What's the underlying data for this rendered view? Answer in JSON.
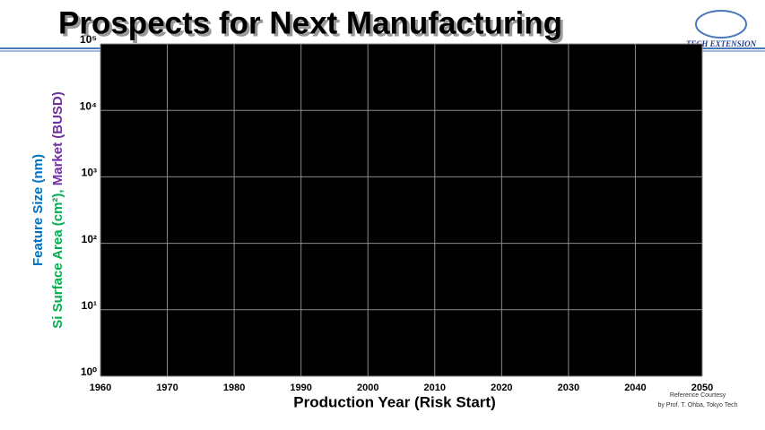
{
  "header": {
    "title": "Prospects for Next Manufacturing",
    "logo": "TECH EXTENSION"
  },
  "chart_data": {
    "type": "line",
    "xlabel": "Production Year (Risk Start)",
    "ylabel": [
      {
        "text": "Feature Size (nm)",
        "color": "#0070c0"
      },
      {
        "text": "Si Surface Area (cm²), ",
        "color": "#00b050"
      },
      {
        "text": "Market (BUSD)",
        "color": "#7030a0"
      }
    ],
    "xlim": [
      1960,
      2050
    ],
    "xticks": [
      1960,
      1970,
      1980,
      1990,
      2000,
      2010,
      2020,
      2030,
      2040,
      2050
    ],
    "ylim": [
      1,
      100000
    ],
    "log_y": true,
    "yticks": [
      {
        "value": 1,
        "label": "10⁰"
      },
      {
        "value": 10,
        "label": "10¹"
      },
      {
        "value": 100,
        "label": "10²"
      },
      {
        "value": 1000,
        "label": "10³"
      },
      {
        "value": 10000,
        "label": "10⁴"
      },
      {
        "value": 100000,
        "label": "10⁵"
      }
    ],
    "grid": true,
    "background": "#000000",
    "grid_color": "#8c8c8c"
  },
  "note": [
    "Reference Courtesy",
    "by Prof. T. Ohba, Tokyo Tech"
  ]
}
